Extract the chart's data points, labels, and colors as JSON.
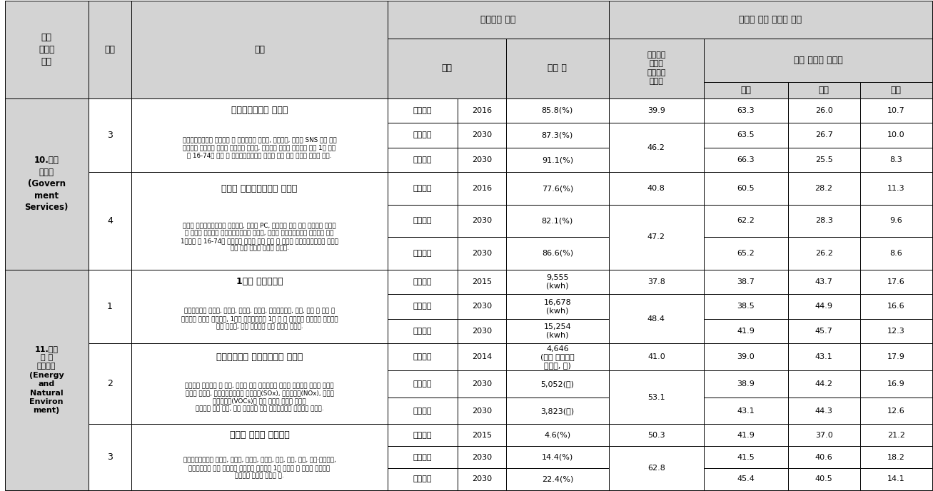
{
  "header_bg": "#D3D3D3",
  "white_bg": "#FFFFFF",
  "sections": [
    {
      "section_label": "10.정부\n서비스\n(Govern\nment\nServices)",
      "items": [
        {
          "num": "3",
          "title": "전자정부서비스 이용률",
          "description": "전자정부서비스란 행정기관 및 공공기관이 인터넷, 스마트폰, 이메일 SNS 등을 통해\n국민에게 제공하는 정보나 서비스를 말하며, 전자정부 서비스 이용률은 최근 1년 동안\n만 16-74세 인구 중 전자정부서비스를 이용한 적이 있는 인구의 비율을 말함.",
          "rows": [
            {
              "시점": "최근관측",
              "연도": "2016",
              "지표값": "85.8(%)",
              "기여도": "39.9",
              "정부": "63.3",
              "민간": "26.0",
              "해외": "10.7"
            },
            {
              "시점": "단순예측",
              "연도": "2030",
              "지표값": "87.3(%)",
              "기여도": "46.2",
              "정부": "63.5",
              "민간": "26.7",
              "해외": "10.0"
            },
            {
              "시점": "정책당위",
              "연도": "2030",
              "지표값": "91.1(%)",
              "기여도": null,
              "정부": "66.3",
              "민간": "25.5",
              "해외": "8.3"
            }
          ]
        },
        {
          "num": "4",
          "title": "모바일 전자정부서비스 이용률",
          "description": "모바일 전자정부서비스는 이동전화, 태블릿 PC, 아이패드 등의 무선 단말기로 이용할\n수 있도록 제공되는 전자정부서비스를 말하며, 모바일 전자정부서비스 이용률은 최근\n1년동안 만 16-74세 전자정부 서비스 이용 인구 중 모바일 전자정부서비스를 이용한\n적이 있는 인구의 비율을 의미함.",
          "rows": [
            {
              "시점": "최근관측",
              "연도": "2016",
              "지표값": "77.6(%)",
              "기여도": "40.8",
              "정부": "60.5",
              "민간": "28.2",
              "해외": "11.3"
            },
            {
              "시점": "단순예측",
              "연도": "2030",
              "지표값": "82.1(%)",
              "기여도": "47.2",
              "정부": "62.2",
              "민간": "28.3",
              "해외": "9.6"
            },
            {
              "시점": "정책당위",
              "연도": "2030",
              "지표값": "86.6(%)",
              "기여도": null,
              "정부": "65.2",
              "민간": "26.2",
              "해외": "8.6"
            }
          ]
        }
      ]
    },
    {
      "section_label": "11.에너\n지 및\n자연환경\n(Energy\nand\nNatural\nEnviron\nment)",
      "items": [
        {
          "num": "1",
          "title": "1인당 전력소비량",
          "description": "전력소비량은 생산용, 주택용, 공공용, 전철용, 전기사업자용, 수도, 상가 및 기타 등\n판매전력 소비량 기준이며, 1인당 전력소비량은 1년 간 총 판매전력 소비량을 인구수로\n나눈 값이며, 이때 인구수는 연앙 인구를 사용함.",
          "rows": [
            {
              "시점": "최근관측",
              "연도": "2015",
              "지표값": "9,555\n(kwh)",
              "기여도": "37.8",
              "정부": "38.7",
              "민간": "43.7",
              "해외": "17.6"
            },
            {
              "시점": "단순예측",
              "연도": "2030",
              "지표값": "16,678\n(kwh)",
              "기여도": "48.4",
              "정부": "38.5",
              "민간": "44.9",
              "해외": "16.6"
            },
            {
              "시점": "정책당위",
              "연도": "2030",
              "지표값": "15,254\n(kwh)",
              "기여도": null,
              "정부": "41.9",
              "민간": "45.7",
              "해외": "12.3"
            }
          ]
        },
        {
          "num": "2",
          "title": "인구십만명당 대기오염물질 배출량",
          "description": "전국적인 대기오염 및 기후, 생태계 변화 유발물질의 생태를 파악하기 위하여 측정된\n자료를 말하며, 대기오염물질에는 황산화물(SOx), 질소산화물(NOx), 휘발성\n유기화합물(VOCs)의 합을 배출량 지표로 나타냄\n해당연도 인구 기준, 인구 십만명당 대비 대기오염물질 배출량을 표시함.",
          "rows": [
            {
              "시점": "최근관측",
              "연도": "2014",
              "지표값": "4,646\n(인구 십만명당\n배출량, 톤)",
              "기여도": "41.0",
              "정부": "39.0",
              "민간": "43.1",
              "해외": "17.9"
            },
            {
              "시점": "단순예측",
              "연도": "2030",
              "지표값": "5,052(톤)",
              "기여도": "53.1",
              "정부": "38.9",
              "민간": "44.2",
              "해외": "16.9"
            },
            {
              "시점": "정책당위",
              "연도": "2030",
              "지표값": "3,823(톤)",
              "기여도": null,
              "정부": "43.1",
              "민간": "44.3",
              "해외": "12.6"
            }
          ]
        },
        {
          "num": "3",
          "title": "신재생 에너지 보급현황",
          "description": "신재생에너지에는 태양열, 태양광, 바이오, 폐기물, 수력, 풍력, 지열, 수소·연료전지,\n해양으로부터 얻는 에너지를 의미하며 여기서는 1차 에너지 중 신재생 에너지가\n차지하는 비중을 지표로 함.",
          "rows": [
            {
              "시점": "최근관측",
              "연도": "2015",
              "지표값": "4.6(%)",
              "기여도": "50.3",
              "정부": "41.9",
              "민간": "37.0",
              "해외": "21.2"
            },
            {
              "시점": "단순예측",
              "연도": "2030",
              "지표값": "14.4(%)",
              "기여도": "62.8",
              "정부": "41.5",
              "민간": "40.6",
              "해외": "18.2"
            },
            {
              "시점": "정책당위",
              "연도": "2030",
              "지표값": "22.4(%)",
              "기여도": null,
              "정부": "45.4",
              "민간": "40.5",
              "해외": "14.1"
            }
          ]
        }
      ]
    }
  ]
}
